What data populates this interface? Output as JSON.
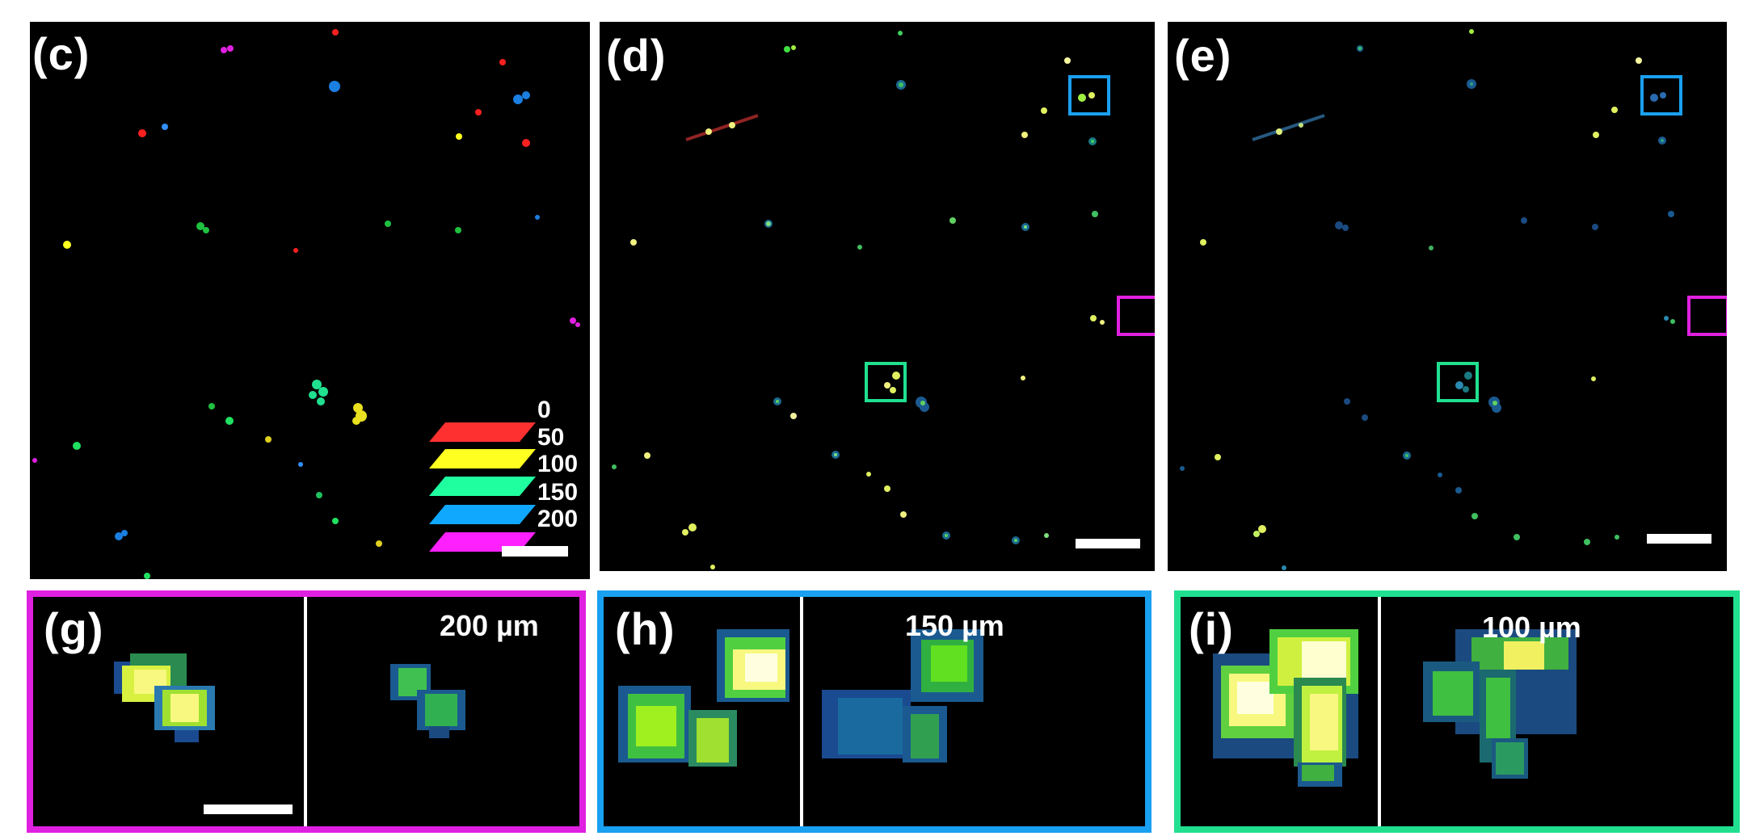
{
  "panels": {
    "c": {
      "label": "(c)"
    },
    "d": {
      "label": "(d)"
    },
    "e": {
      "label": "(e)"
    },
    "g": {
      "label": "(g)",
      "depth": "200 µm"
    },
    "h": {
      "label": "(h)",
      "depth": "150 µm"
    },
    "i": {
      "label": "(i)",
      "depth": "100 µm"
    }
  },
  "legend": {
    "items": [
      {
        "label": "0",
        "color": "#ff3030"
      },
      {
        "label": "50",
        "color": "#ffff20"
      },
      {
        "label": "100",
        "color": "#20ffa0"
      },
      {
        "label": "150",
        "color": "#10a8ff"
      },
      {
        "label": "200",
        "color": "#ff20ff"
      }
    ]
  },
  "colors": {
    "magenta_roi": "#e020e0",
    "blue_roi": "#1aa0f0",
    "green_roi": "#20e090",
    "line_d": "#c03030",
    "line_e": "#3070a0"
  }
}
